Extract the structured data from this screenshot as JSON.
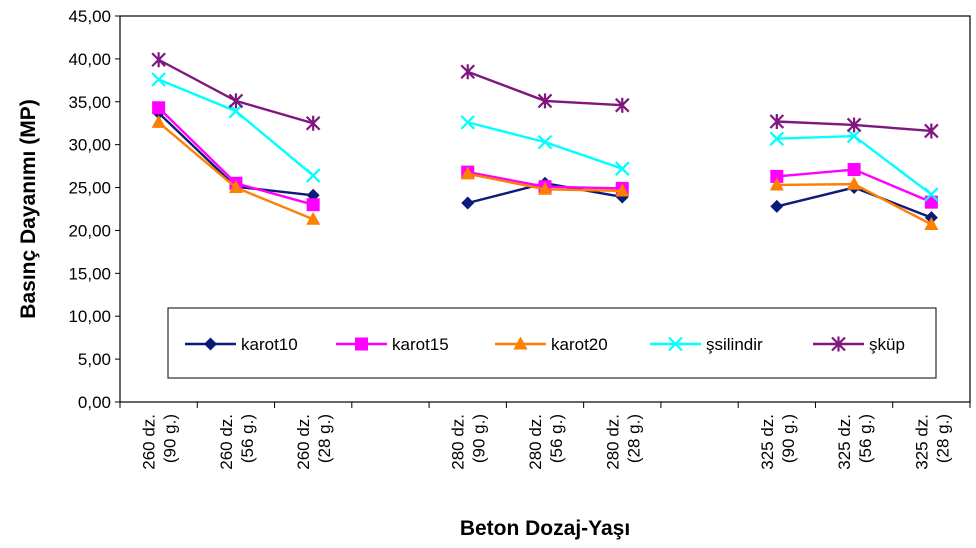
{
  "chart_data": {
    "type": "line",
    "xlabel": "Beton Dozaj-Yaşı",
    "ylabel": "Basınç Dayanımı (MP)",
    "ylim": [
      0,
      45
    ],
    "y_ticks": [
      "0,00",
      "5,00",
      "10,00",
      "15,00",
      "20,00",
      "25,00",
      "30,00",
      "35,00",
      "40,00",
      "45,00"
    ],
    "grid": false,
    "legend_position": "bottom-inside",
    "slot_count": 11,
    "categories": [
      {
        "slot": 0,
        "line1": "260 dz.",
        "line2": "(90 g.)"
      },
      {
        "slot": 1,
        "line1": "260 dz.",
        "line2": "(56 g.)"
      },
      {
        "slot": 2,
        "line1": "260 dz.",
        "line2": "(28 g.)"
      },
      {
        "slot": 4,
        "line1": "280 dz.",
        "line2": "(90 g.)"
      },
      {
        "slot": 5,
        "line1": "280 dz.",
        "line2": "(56 g.)"
      },
      {
        "slot": 6,
        "line1": "280 dz.",
        "line2": "(28 g.)"
      },
      {
        "slot": 8,
        "line1": "325 dz.",
        "line2": "(90 g.)"
      },
      {
        "slot": 9,
        "line1": "325 dz.",
        "line2": "(56 g.)"
      },
      {
        "slot": 10,
        "line1": "325 dz.",
        "line2": "(28 g.)"
      }
    ],
    "groups": [
      [
        0,
        1,
        2
      ],
      [
        3,
        4,
        5
      ],
      [
        6,
        7,
        8
      ]
    ],
    "series": [
      {
        "name": "karot10",
        "color": "#0a1b7a",
        "marker": "diamond",
        "values": [
          33.7,
          25.1,
          24.1,
          23.2,
          25.5,
          23.9,
          22.8,
          25.0,
          21.5
        ]
      },
      {
        "name": "karot15",
        "color": "#ff00ff",
        "marker": "square",
        "values": [
          34.3,
          25.5,
          23.0,
          26.8,
          25.1,
          24.9,
          26.3,
          27.1,
          23.3
        ]
      },
      {
        "name": "karot20",
        "color": "#ff7f00",
        "marker": "triangle",
        "values": [
          32.6,
          25.0,
          21.3,
          26.6,
          24.8,
          24.6,
          25.3,
          25.4,
          20.7
        ]
      },
      {
        "name": "şsilindir",
        "color": "#00ffff",
        "marker": "x",
        "values": [
          37.6,
          33.9,
          26.4,
          32.6,
          30.3,
          27.2,
          30.7,
          31.0,
          24.2
        ]
      },
      {
        "name": "şküp",
        "color": "#7f177f",
        "marker": "star",
        "values": [
          39.9,
          35.1,
          32.5,
          38.5,
          35.1,
          34.6,
          32.7,
          32.3,
          31.6
        ]
      }
    ]
  }
}
